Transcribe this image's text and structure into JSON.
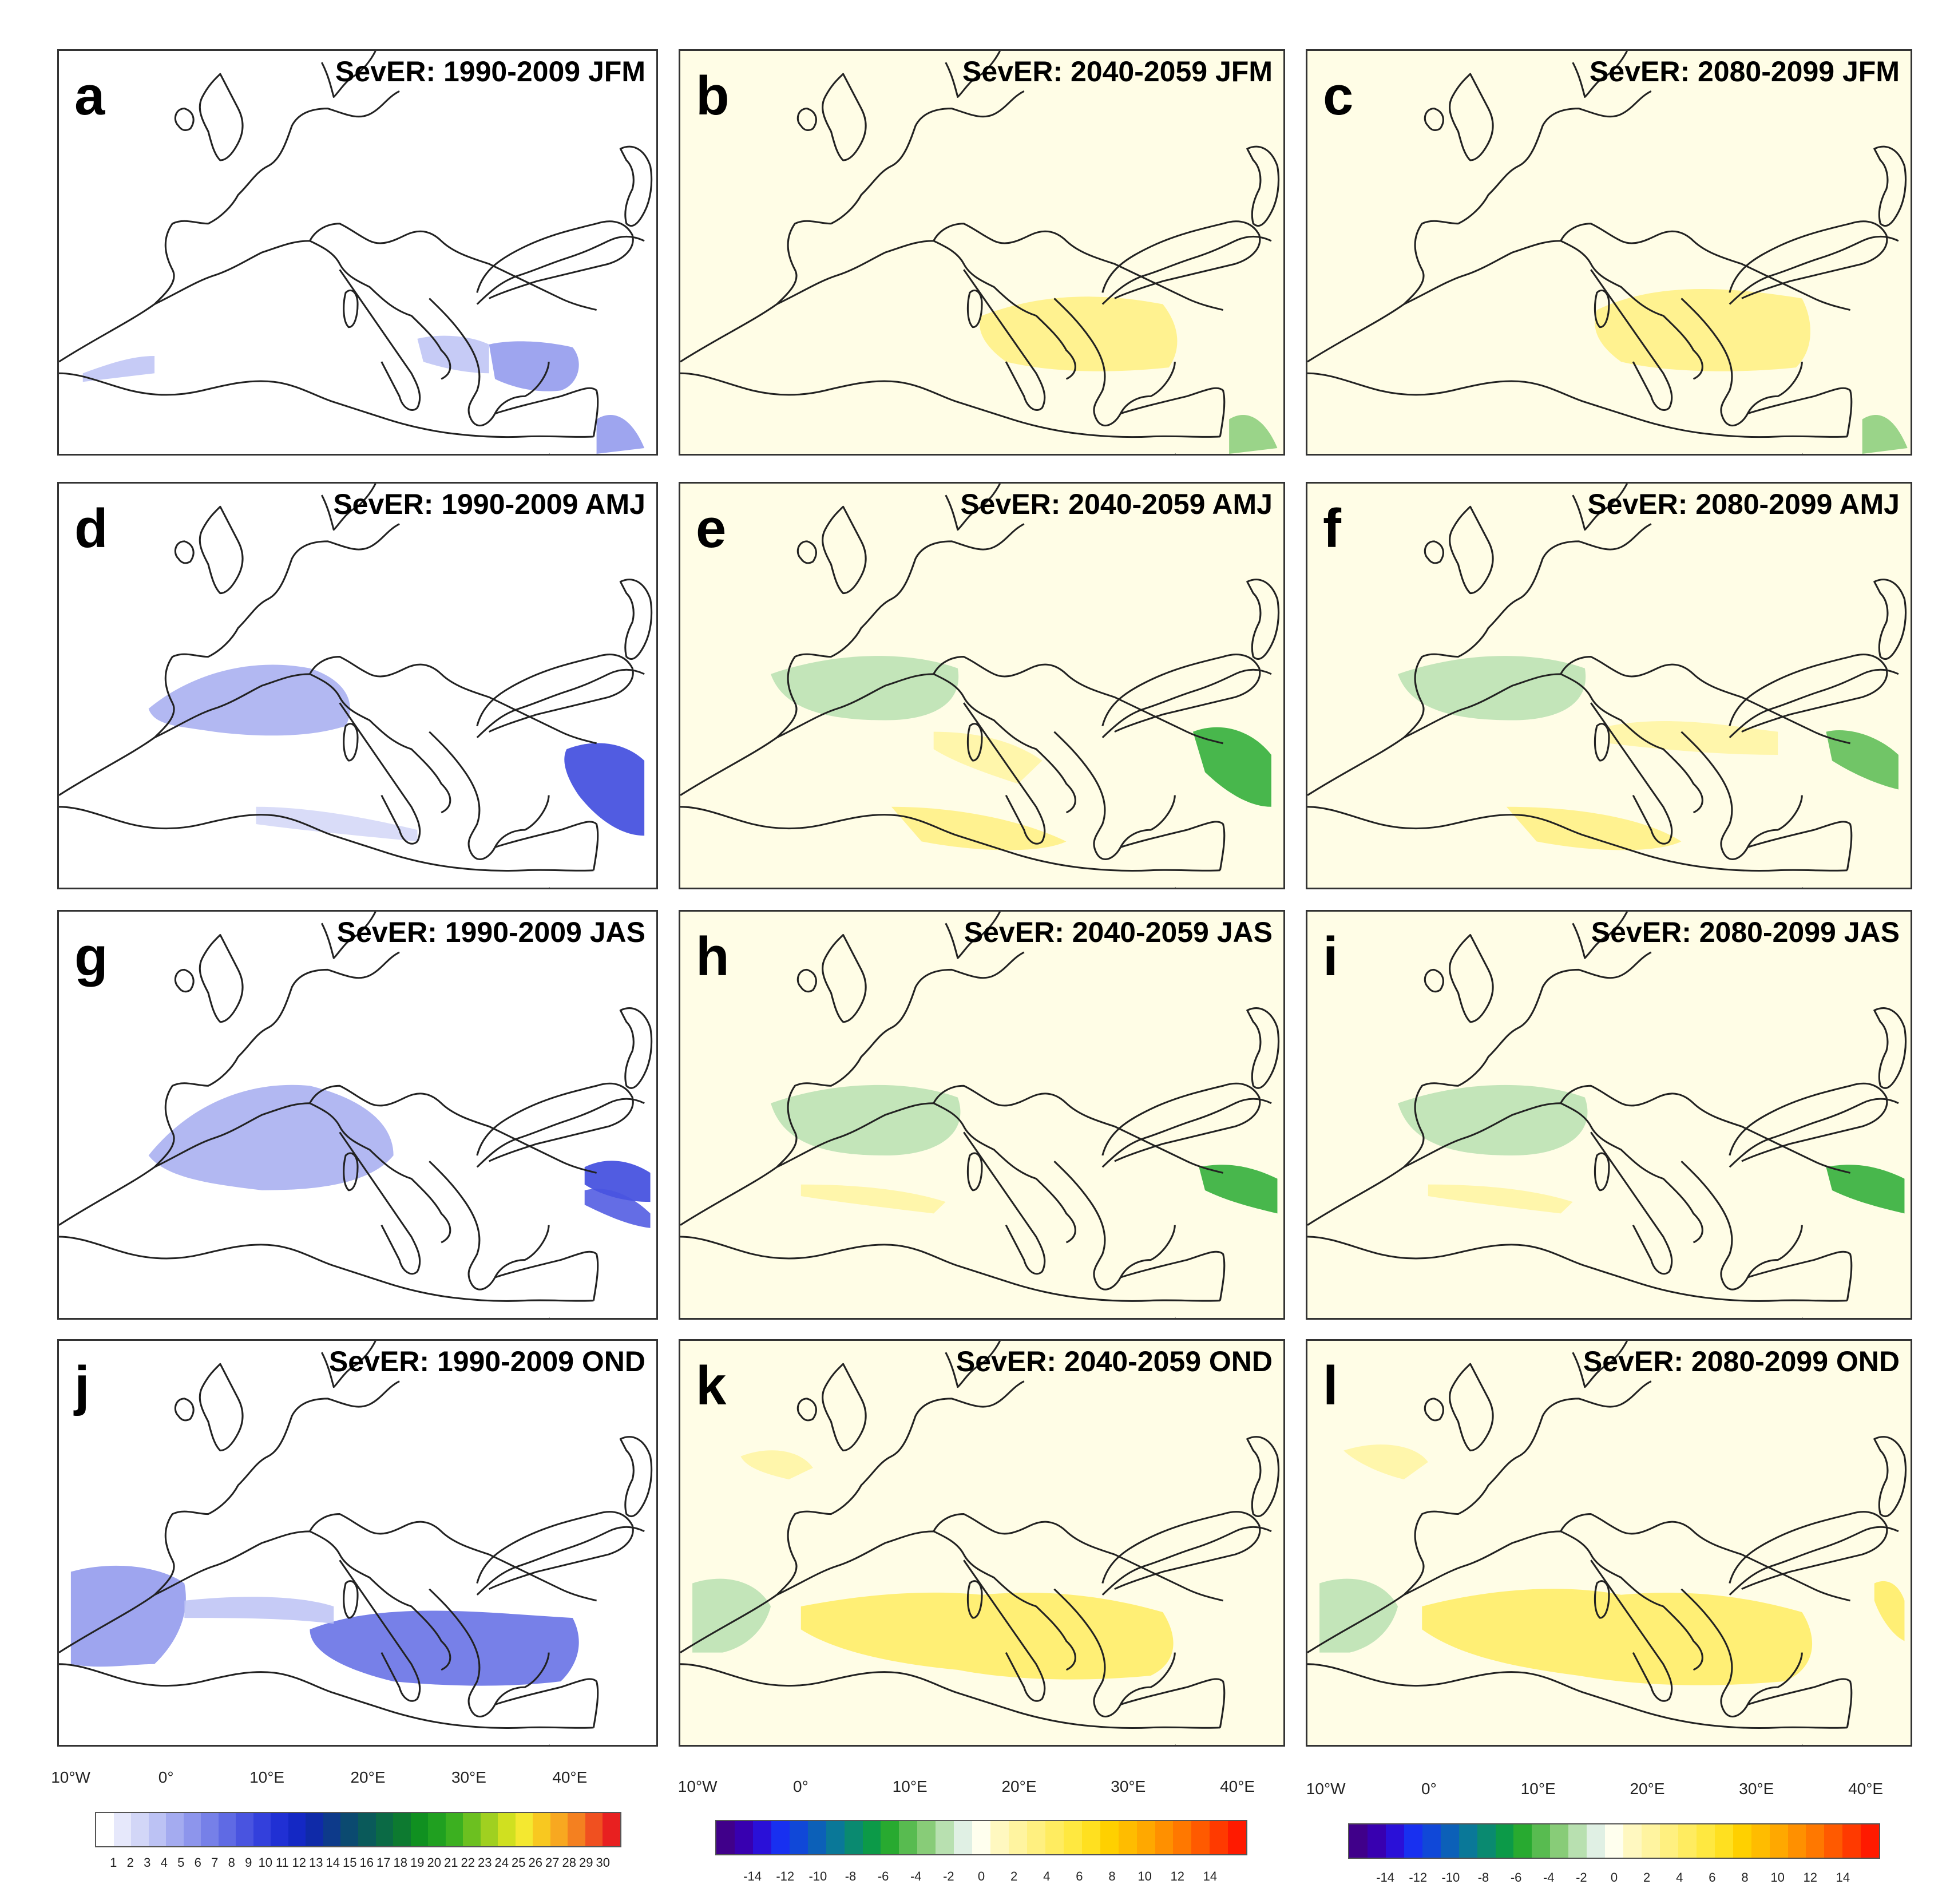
{
  "panels": [
    {
      "letter": "a",
      "title": "SevER: 1990-2009 JFM",
      "kind": "clim"
    },
    {
      "letter": "b",
      "title": "SevER: 2040-2059 JFM",
      "kind": "diff"
    },
    {
      "letter": "c",
      "title": "SevER: 2080-2099 JFM",
      "kind": "diff"
    },
    {
      "letter": "d",
      "title": "SevER: 1990-2009 AMJ",
      "kind": "clim"
    },
    {
      "letter": "e",
      "title": "SevER: 2040-2059 AMJ",
      "kind": "diff"
    },
    {
      "letter": "f",
      "title": "SevER: 2080-2099 AMJ",
      "kind": "diff"
    },
    {
      "letter": "g",
      "title": "SevER: 1990-2009 JAS",
      "kind": "clim"
    },
    {
      "letter": "h",
      "title": "SevER: 2040-2059 JAS",
      "kind": "diff"
    },
    {
      "letter": "i",
      "title": "SevER: 2080-2099 JAS",
      "kind": "diff"
    },
    {
      "letter": "j",
      "title": "SevER: 1990-2009 OND",
      "kind": "clim"
    },
    {
      "letter": "k",
      "title": "SevER: 2040-2059 OND",
      "kind": "diff"
    },
    {
      "letter": "l",
      "title": "SevER: 2080-2099 OND",
      "kind": "diff"
    }
  ],
  "x_axis_labels": [
    "10°W",
    "0°",
    "10°E",
    "20°E",
    "30°E",
    "40°E"
  ],
  "colorbars": {
    "clim_labels": [
      "1",
      "2",
      "3",
      "4",
      "5",
      "6",
      "7",
      "8",
      "9",
      "10",
      "11",
      "12",
      "13",
      "14",
      "15",
      "16",
      "17",
      "18",
      "19",
      "20",
      "21",
      "22",
      "23",
      "24",
      "25",
      "26",
      "27",
      "28",
      "29",
      "30"
    ],
    "diff_labels": [
      "-14",
      "-12",
      "-10",
      "-8",
      "-6",
      "-4",
      "-2",
      "0",
      "2",
      "4",
      "6",
      "8",
      "10",
      "12",
      "14"
    ],
    "clim_colors": [
      "#ffffff",
      "#e6e8fb",
      "#d2d6f7",
      "#bcc2f4",
      "#a4abf0",
      "#8d95ec",
      "#7680e8",
      "#5f6ae4",
      "#4954e0",
      "#3340dc",
      "#2030d4",
      "#1428c4",
      "#0f2aa8",
      "#0d3a8a",
      "#0b4a70",
      "#0a5a5a",
      "#0b6a45",
      "#0d7a30",
      "#109020",
      "#20a020",
      "#3cb020",
      "#6cc020",
      "#a0d020",
      "#d0e020",
      "#f4e830",
      "#f8c820",
      "#f8a820",
      "#f48020",
      "#f05020",
      "#e82020"
    ],
    "diff_colors": [
      "#40008a",
      "#3800b0",
      "#2a10d8",
      "#1830f0",
      "#1048d8",
      "#0c60b8",
      "#0a7898",
      "#0a8a70",
      "#0c9a48",
      "#28aa30",
      "#58bb50",
      "#88cc78",
      "#b8e0b0",
      "#e0f0e4",
      "#ffffee",
      "#fff8c0",
      "#fff4a0",
      "#fff080",
      "#ffec60",
      "#ffe840",
      "#ffe020",
      "#ffd000",
      "#ffbc00",
      "#ffa800",
      "#ff9000",
      "#ff7800",
      "#ff5a00",
      "#ff3a00",
      "#ff1a00"
    ]
  },
  "colors": {
    "clim_background": "#ffffff",
    "diff_background": "#fffde6",
    "coastline": "#222222",
    "frame": "#333333"
  }
}
